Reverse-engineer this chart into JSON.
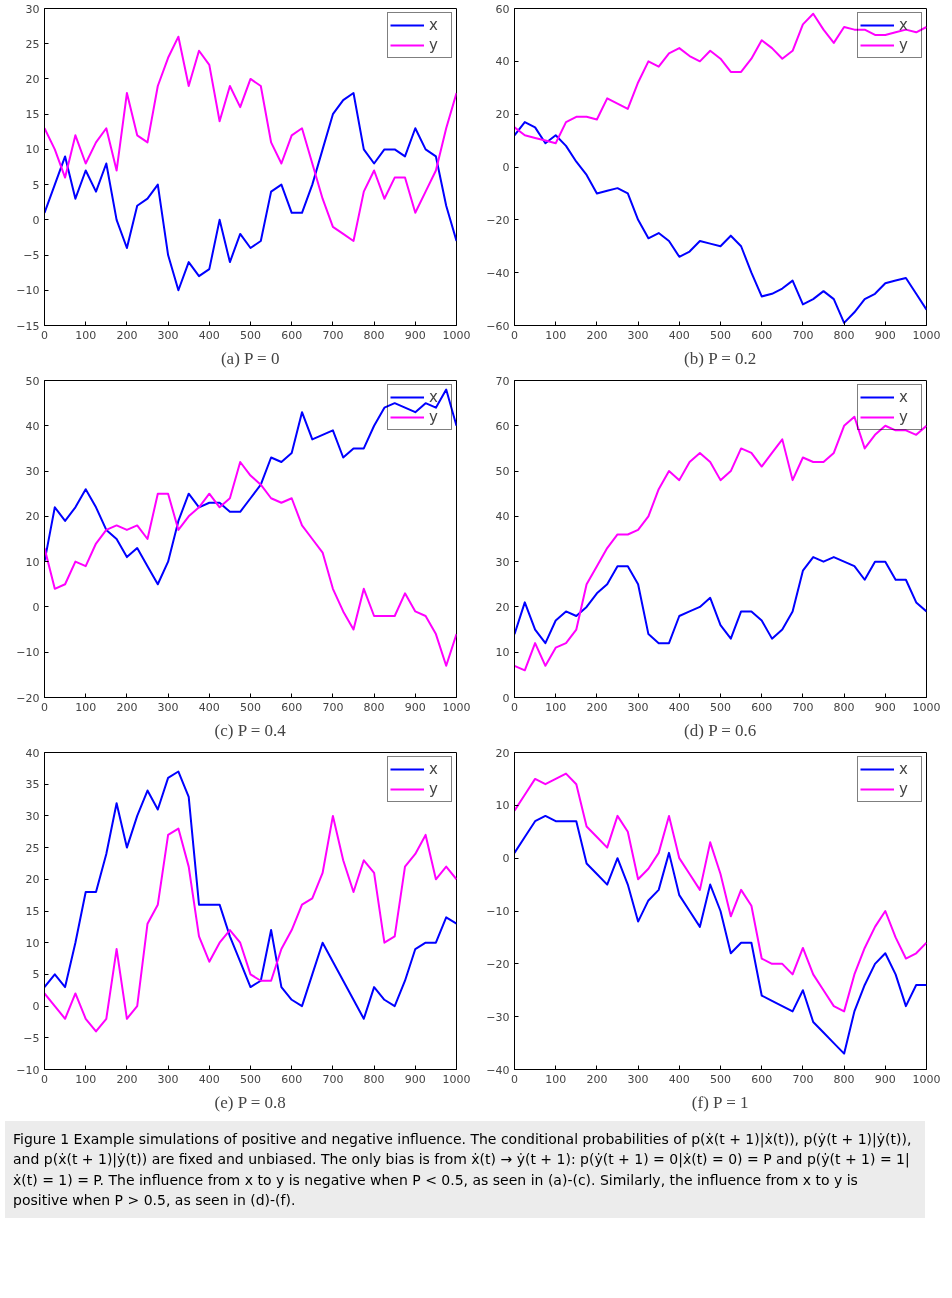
{
  "chart_data": [
    {
      "type": "line",
      "title": "(a) P = 0",
      "x": [
        0,
        25,
        50,
        75,
        100,
        125,
        150,
        175,
        200,
        225,
        250,
        275,
        300,
        325,
        350,
        375,
        400,
        425,
        450,
        475,
        500,
        525,
        550,
        575,
        600,
        625,
        650,
        675,
        700,
        725,
        750,
        775,
        800,
        825,
        850,
        875,
        900,
        925,
        950,
        975,
        1000
      ],
      "xlim": [
        0,
        1000
      ],
      "xticks": [
        0,
        100,
        200,
        300,
        400,
        500,
        600,
        700,
        800,
        900,
        1000
      ],
      "ylim": [
        -15,
        30
      ],
      "yticks": [
        -15,
        -10,
        -5,
        0,
        5,
        10,
        15,
        20,
        25,
        30
      ],
      "grid": false,
      "legend": "top right",
      "series": [
        {
          "name": "x",
          "color": "#0000ff",
          "values": [
            1,
            5,
            9,
            3,
            7,
            4,
            8,
            0,
            -4,
            2,
            3,
            5,
            -5,
            -10,
            -6,
            -8,
            -7,
            0,
            -6,
            -2,
            -4,
            -3,
            4,
            5,
            1,
            1,
            5,
            10,
            15,
            17,
            18,
            10,
            8,
            10,
            10,
            9,
            13,
            10,
            9,
            2,
            -3
          ]
        },
        {
          "name": "y",
          "color": "#ff00ff",
          "values": [
            13,
            10,
            6,
            12,
            8,
            11,
            13,
            7,
            18,
            12,
            11,
            19,
            23,
            26,
            19,
            24,
            22,
            14,
            19,
            16,
            20,
            19,
            11,
            8,
            12,
            13,
            8,
            3,
            -1,
            -2,
            -3,
            4,
            7,
            3,
            6,
            6,
            1,
            4,
            7,
            13,
            18
          ]
        }
      ]
    },
    {
      "type": "line",
      "title": "(b) P = 0.2",
      "x": [
        0,
        25,
        50,
        75,
        100,
        125,
        150,
        175,
        200,
        225,
        250,
        275,
        300,
        325,
        350,
        375,
        400,
        425,
        450,
        475,
        500,
        525,
        550,
        575,
        600,
        625,
        650,
        675,
        700,
        725,
        750,
        775,
        800,
        825,
        850,
        875,
        900,
        925,
        950,
        975,
        1000
      ],
      "xlim": [
        0,
        1000
      ],
      "xticks": [
        0,
        100,
        200,
        300,
        400,
        500,
        600,
        700,
        800,
        900,
        1000
      ],
      "ylim": [
        -60,
        60
      ],
      "yticks": [
        -60,
        -40,
        -20,
        0,
        20,
        40,
        60
      ],
      "grid": false,
      "legend": "top right",
      "series": [
        {
          "name": "x",
          "color": "#0000ff",
          "values": [
            12,
            17,
            15,
            9,
            12,
            8,
            2,
            -3,
            -10,
            -9,
            -8,
            -10,
            -20,
            -27,
            -25,
            -28,
            -34,
            -32,
            -28,
            -29,
            -30,
            -26,
            -30,
            -40,
            -49,
            -48,
            -46,
            -43,
            -52,
            -50,
            -47,
            -50,
            -59,
            -55,
            -50,
            -48,
            -44,
            -43,
            -42,
            -48,
            -54
          ]
        },
        {
          "name": "y",
          "color": "#ff00ff",
          "values": [
            15,
            12,
            11,
            10,
            9,
            17,
            19,
            19,
            18,
            26,
            24,
            22,
            32,
            40,
            38,
            43,
            45,
            42,
            40,
            44,
            41,
            36,
            36,
            41,
            48,
            45,
            41,
            44,
            54,
            58,
            52,
            47,
            53,
            52,
            52,
            50,
            50,
            51,
            52,
            51,
            53
          ]
        }
      ]
    },
    {
      "type": "line",
      "title": "(c) P = 0.4",
      "x": [
        0,
        25,
        50,
        75,
        100,
        125,
        150,
        175,
        200,
        225,
        250,
        275,
        300,
        325,
        350,
        375,
        400,
        425,
        450,
        475,
        500,
        525,
        550,
        575,
        600,
        625,
        650,
        675,
        700,
        725,
        750,
        775,
        800,
        825,
        850,
        875,
        900,
        925,
        950,
        975,
        1000
      ],
      "xlim": [
        0,
        1000
      ],
      "xticks": [
        0,
        100,
        200,
        300,
        400,
        500,
        600,
        700,
        800,
        900,
        1000
      ],
      "ylim": [
        -20,
        50
      ],
      "yticks": [
        -20,
        -10,
        0,
        10,
        20,
        30,
        40,
        50
      ],
      "grid": false,
      "legend": "top right",
      "series": [
        {
          "name": "x",
          "color": "#0000ff",
          "values": [
            10,
            22,
            19,
            22,
            26,
            22,
            17,
            15,
            11,
            13,
            9,
            5,
            10,
            19,
            25,
            22,
            23,
            23,
            21,
            21,
            24,
            27,
            33,
            32,
            34,
            43,
            37,
            38,
            39,
            33,
            35,
            35,
            40,
            44,
            45,
            44,
            43,
            45,
            44,
            48,
            40
          ]
        },
        {
          "name": "y",
          "color": "#ff00ff",
          "values": [
            13,
            4,
            5,
            10,
            9,
            14,
            17,
            18,
            17,
            18,
            15,
            25,
            25,
            17,
            20,
            22,
            25,
            22,
            24,
            32,
            29,
            27,
            24,
            23,
            24,
            18,
            15,
            12,
            4,
            -1,
            -5,
            4,
            -2,
            -2,
            -2,
            3,
            -1,
            -2,
            -6,
            -13,
            -6
          ]
        }
      ]
    },
    {
      "type": "line",
      "title": "(d) P = 0.6",
      "x": [
        0,
        25,
        50,
        75,
        100,
        125,
        150,
        175,
        200,
        225,
        250,
        275,
        300,
        325,
        350,
        375,
        400,
        425,
        450,
        475,
        500,
        525,
        550,
        575,
        600,
        625,
        650,
        675,
        700,
        725,
        750,
        775,
        800,
        825,
        850,
        875,
        900,
        925,
        950,
        975,
        1000
      ],
      "xlim": [
        0,
        1000
      ],
      "xticks": [
        0,
        100,
        200,
        300,
        400,
        500,
        600,
        700,
        800,
        900,
        1000
      ],
      "ylim": [
        0,
        70
      ],
      "yticks": [
        0,
        10,
        20,
        30,
        40,
        50,
        60,
        70
      ],
      "grid": false,
      "legend": "top right",
      "series": [
        {
          "name": "x",
          "color": "#0000ff",
          "values": [
            14,
            21,
            15,
            12,
            17,
            19,
            18,
            20,
            23,
            25,
            29,
            29,
            25,
            14,
            12,
            12,
            18,
            19,
            20,
            22,
            16,
            13,
            19,
            19,
            17,
            13,
            15,
            19,
            28,
            31,
            30,
            31,
            30,
            29,
            26,
            30,
            30,
            26,
            26,
            21,
            19
          ]
        },
        {
          "name": "y",
          "color": "#ff00ff",
          "values": [
            7,
            6,
            12,
            7,
            11,
            12,
            15,
            25,
            29,
            33,
            36,
            36,
            37,
            40,
            46,
            50,
            48,
            52,
            54,
            52,
            48,
            50,
            55,
            54,
            51,
            54,
            57,
            48,
            53,
            52,
            52,
            54,
            60,
            62,
            55,
            58,
            60,
            59,
            59,
            58,
            60
          ]
        }
      ]
    },
    {
      "type": "line",
      "title": "(e) P = 0.8",
      "x": [
        0,
        25,
        50,
        75,
        100,
        125,
        150,
        175,
        200,
        225,
        250,
        275,
        300,
        325,
        350,
        375,
        400,
        425,
        450,
        475,
        500,
        525,
        550,
        575,
        600,
        625,
        650,
        675,
        700,
        725,
        750,
        775,
        800,
        825,
        850,
        875,
        900,
        925,
        950,
        975,
        1000
      ],
      "xlim": [
        0,
        1000
      ],
      "xticks": [
        0,
        100,
        200,
        300,
        400,
        500,
        600,
        700,
        800,
        900,
        1000
      ],
      "ylim": [
        -10,
        40
      ],
      "yticks": [
        -10,
        -5,
        0,
        5,
        10,
        15,
        20,
        25,
        30,
        35,
        40
      ],
      "grid": false,
      "legend": "top right",
      "series": [
        {
          "name": "x",
          "color": "#0000ff",
          "values": [
            3,
            5,
            3,
            10,
            18,
            18,
            24,
            32,
            25,
            30,
            34,
            31,
            36,
            37,
            33,
            16,
            16,
            16,
            11,
            7,
            3,
            4,
            12,
            3,
            1,
            0,
            5,
            10,
            7,
            4,
            1,
            -2,
            3,
            1,
            0,
            4,
            9,
            10,
            10,
            14,
            13
          ]
        },
        {
          "name": "y",
          "color": "#ff00ff",
          "values": [
            2,
            0,
            -2,
            2,
            -2,
            -4,
            -2,
            9,
            -2,
            0,
            13,
            16,
            27,
            28,
            22,
            11,
            7,
            10,
            12,
            10,
            5,
            4,
            4,
            9,
            12,
            16,
            17,
            21,
            30,
            23,
            18,
            23,
            21,
            10,
            11,
            22,
            24,
            27,
            20,
            22,
            20
          ]
        }
      ]
    },
    {
      "type": "line",
      "title": "(f) P = 1",
      "x": [
        0,
        25,
        50,
        75,
        100,
        125,
        150,
        175,
        200,
        225,
        250,
        275,
        300,
        325,
        350,
        375,
        400,
        425,
        450,
        475,
        500,
        525,
        550,
        575,
        600,
        625,
        650,
        675,
        700,
        725,
        750,
        775,
        800,
        825,
        850,
        875,
        900,
        925,
        950,
        975,
        1000
      ],
      "xlim": [
        0,
        1000
      ],
      "xticks": [
        0,
        100,
        200,
        300,
        400,
        500,
        600,
        700,
        800,
        900,
        1000
      ],
      "ylim": [
        -40,
        20
      ],
      "yticks": [
        -40,
        -30,
        -20,
        -10,
        0,
        10,
        20
      ],
      "grid": false,
      "legend": "top right",
      "annotations": [
        "Figure 1  Example simulations of positive and negative influence. The conditional probabilities of p(ẋ(t + 1)|ẋ(t)), p(ẏ(t + 1)|ẏ(t)), and p(ẋ(t + 1)|ẏ(t)) are fixed and unbiased. The only bias is from ẋ(t) → ẏ(t + 1): p(ẏ(t + 1) = 0|ẋ(t) = 0) = P and p(ẏ(t + 1) = 1|ẋ(t) = 1) = P. The influence from x to y is negative when P < 0.5, as seen in (a)-(c). Similarly, the influence from x to y is positive when P > 0.5, as seen in (d)-(f)."
      ],
      "series": [
        {
          "name": "x",
          "color": "#0000ff",
          "values": [
            1,
            4,
            7,
            8,
            7,
            7,
            7,
            -1,
            -3,
            -5,
            0,
            -5,
            -12,
            -8,
            -6,
            1,
            -7,
            -10,
            -13,
            -5,
            -10,
            -18,
            -16,
            -16,
            -26,
            -27,
            -28,
            -29,
            -25,
            -31,
            -33,
            -35,
            -37,
            -29,
            -24,
            -20,
            -18,
            -22,
            -28,
            -24,
            -24
          ]
        },
        {
          "name": "y",
          "color": "#ff00ff",
          "values": [
            9,
            12,
            15,
            14,
            15,
            16,
            14,
            6,
            4,
            2,
            8,
            5,
            -4,
            -2,
            1,
            8,
            0,
            -3,
            -6,
            3,
            -3,
            -11,
            -6,
            -9,
            -19,
            -20,
            -20,
            -22,
            -17,
            -22,
            -25,
            -28,
            -29,
            -22,
            -17,
            -13,
            -10,
            -15,
            -19,
            -18,
            -16
          ]
        }
      ]
    }
  ]
}
